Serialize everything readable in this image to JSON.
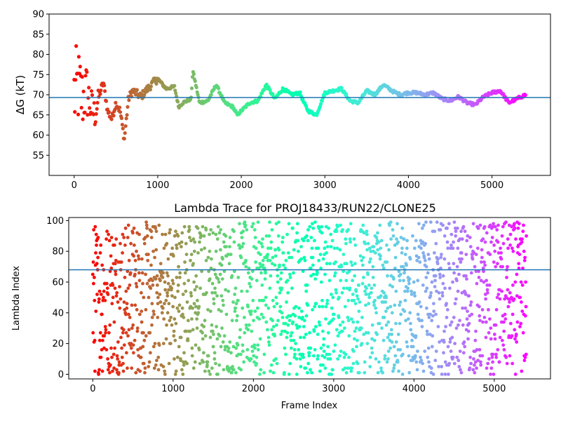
{
  "chart_data": [
    {
      "type": "scatter",
      "title": "",
      "xlabel": "",
      "ylabel": "ΔG (kT)",
      "xlim": [
        -300,
        5700
      ],
      "ylim": [
        50,
        90
      ],
      "xticks": [
        0,
        1000,
        2000,
        3000,
        4000,
        5000
      ],
      "yticks": [
        55,
        60,
        65,
        70,
        75,
        80,
        85,
        90
      ],
      "hline": 69.3,
      "hline_color": "#1f77b4",
      "colormap": "rainbow (red at frame 0 to violet at last frame)",
      "n_frames": 5400,
      "grid": false,
      "series": [
        {
          "x": [
            0,
            50,
            100,
            150,
            200,
            250,
            300,
            350,
            400,
            450,
            500,
            550,
            600,
            650,
            700,
            800,
            900,
            1000,
            1100,
            1200,
            1250,
            1300,
            1400,
            1420,
            1500,
            1600,
            1700,
            1800,
            1900,
            1950,
            2000,
            2100,
            2200,
            2300,
            2400,
            2500,
            2600,
            2700,
            2750,
            2800,
            2850,
            2900,
            3000,
            3100,
            3200,
            3300,
            3400,
            3500,
            3600,
            3700,
            3800,
            3900,
            4000,
            4100,
            4200,
            4300,
            4400,
            4500,
            4600,
            4700,
            4800,
            4900,
            5000,
            5100,
            5200,
            5300,
            5400
          ],
          "y": [
            70,
            72,
            69,
            71,
            67,
            65,
            70,
            73,
            66,
            64,
            68,
            66,
            59,
            69,
            71,
            69.5,
            72,
            74,
            71.5,
            72,
            67,
            68,
            69,
            76,
            68,
            68.5,
            72.5,
            68,
            67,
            65,
            66,
            68,
            68.5,
            72.5,
            69,
            71.5,
            70,
            70.5,
            68,
            66,
            65.5,
            65,
            70.5,
            71,
            71.5,
            68.5,
            68,
            71,
            70,
            72.5,
            71,
            70,
            70.5,
            70.5,
            70,
            70.5,
            69,
            68.5,
            69.5,
            68,
            67.5,
            69.5,
            70.5,
            71,
            68,
            69,
            70
          ]
        }
      ]
    },
    {
      "type": "scatter",
      "title": "Lambda Trace for PROJ18433/RUN22/CLONE25",
      "xlabel": "Frame Index",
      "ylabel": "Lambda Index",
      "xlim": [
        -300,
        5700
      ],
      "ylim": [
        -3,
        102
      ],
      "xticks": [
        0,
        1000,
        2000,
        3000,
        4000,
        5000
      ],
      "yticks": [
        0,
        20,
        40,
        60,
        80,
        100
      ],
      "hline": 68,
      "hline_color": "#1f77b4",
      "colormap": "rainbow (red at frame 0 to violet at last frame)",
      "n_frames": 5400,
      "lambda_range": [
        0,
        99
      ],
      "grid": false
    }
  ]
}
